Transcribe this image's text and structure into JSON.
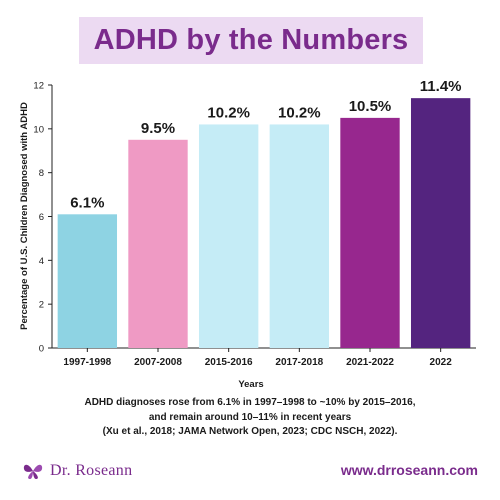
{
  "header": {
    "title": "ADHD by the Numbers"
  },
  "chart_data": {
    "type": "bar",
    "categories": [
      "1997-1998",
      "2007-2008",
      "2015-2016",
      "2017-2018",
      "2021-2022",
      "2022"
    ],
    "values": [
      6.1,
      9.5,
      10.2,
      10.2,
      10.5,
      11.4
    ],
    "data_labels": [
      "6.1%",
      "9.5%",
      "10.2%",
      "10.2%",
      "10.5%",
      "11.4%"
    ],
    "bar_colors": [
      "#8ed3e3",
      "#ef9ac4",
      "#c5ecf6",
      "#c5ecf6",
      "#97278e",
      "#54247f"
    ],
    "title": "ADHD by the Numbers",
    "xlabel": "Years",
    "ylabel": "Percentage of U.S. Children Diagnosed with ADHD",
    "ylim": [
      0,
      12
    ],
    "yticks": [
      0,
      2,
      4,
      6,
      8,
      10,
      12
    ],
    "grid": false,
    "legend": "none"
  },
  "caption": {
    "lines": [
      "ADHD diagnoses rose from 6.1% in 1997–1998 to ~10% by 2015–2016,",
      "and remain around 10–11% in recent years",
      "(Xu et al., 2018; JAMA Network Open, 2023; CDC NSCH, 2022)."
    ]
  },
  "footer": {
    "brand": "Dr. Roseann",
    "brand_icon": "butterfly-logo-icon",
    "url": "www.drroseann.com"
  },
  "colors": {
    "brand_purple": "#7a2b8c",
    "title_background": "#ecdaf2",
    "axis": "#222222"
  }
}
